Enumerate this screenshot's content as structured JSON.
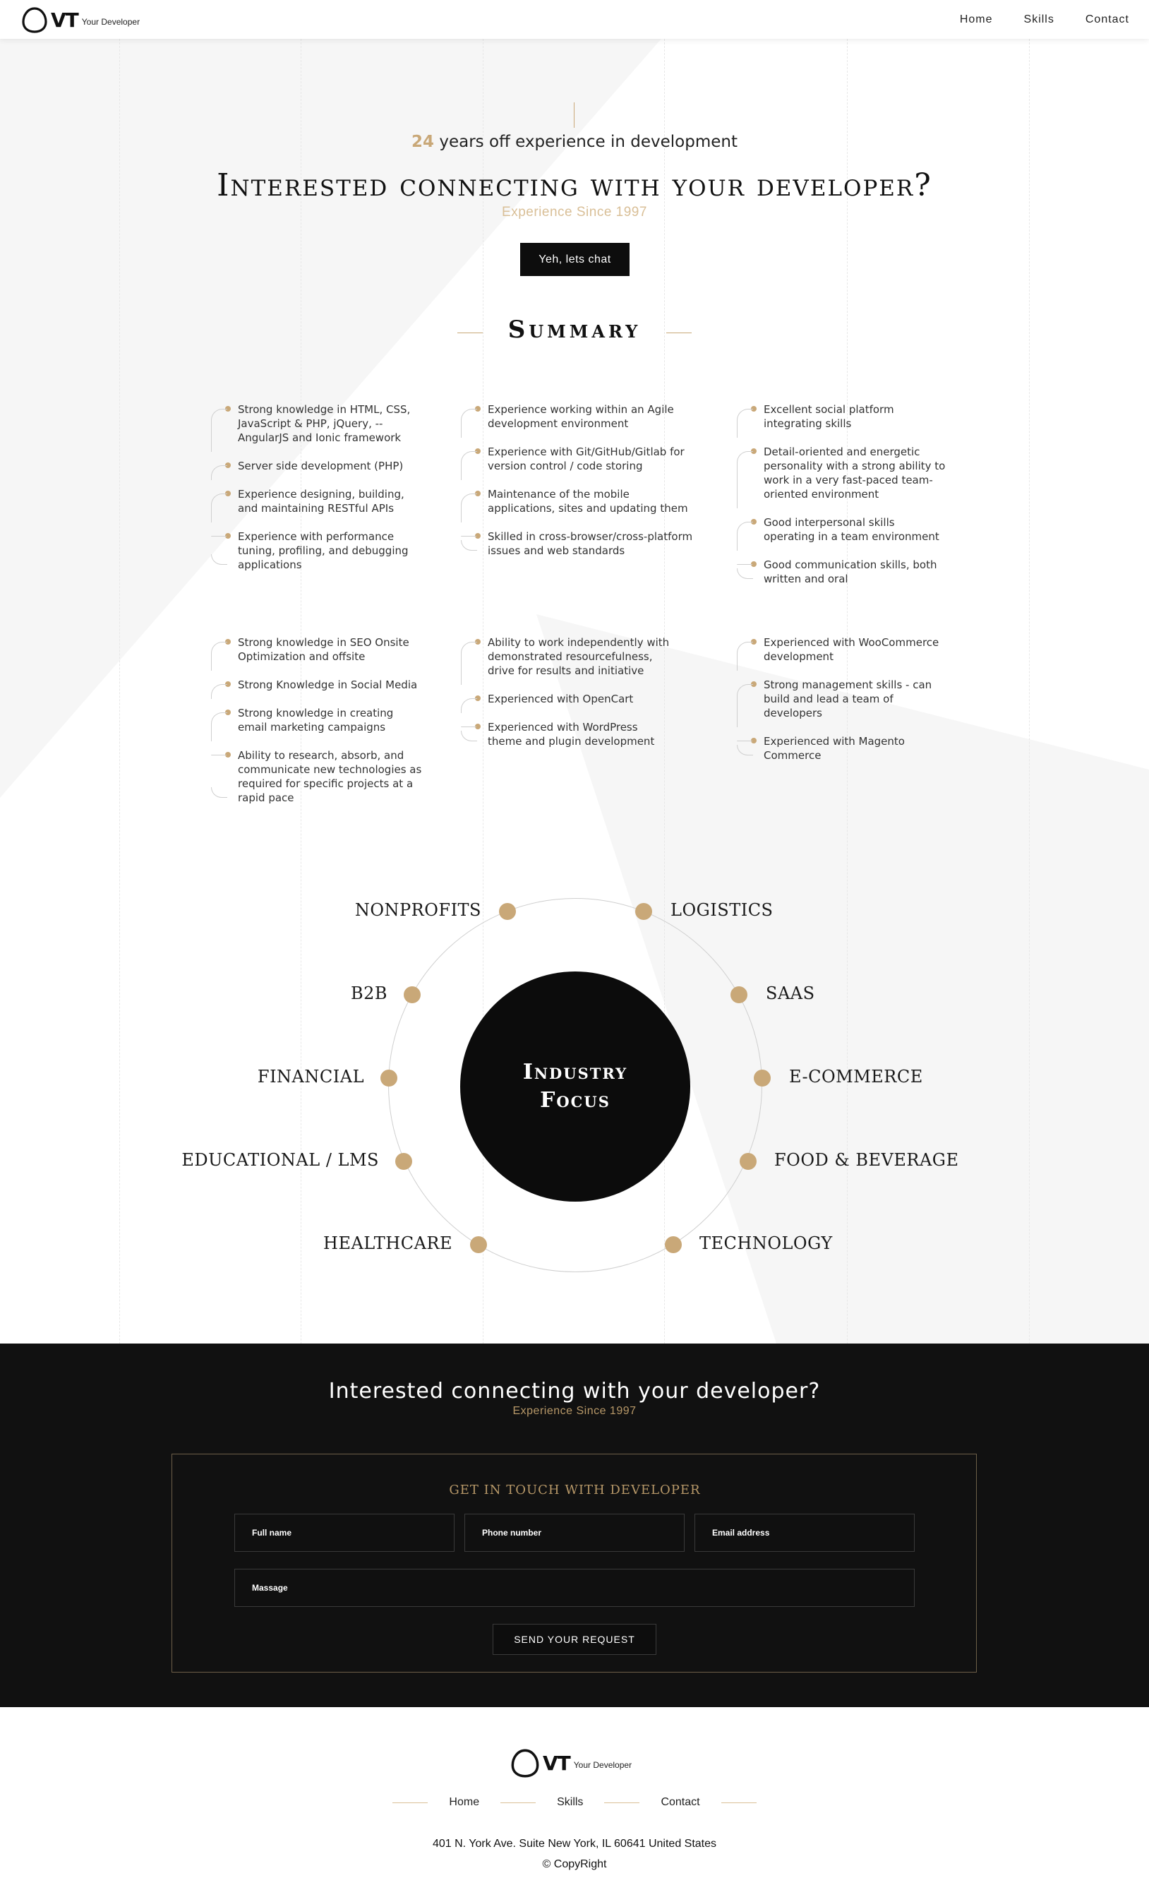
{
  "header": {
    "logo_text": "VT",
    "logo_sub": "Your Developer",
    "nav": [
      "Home",
      "Skills",
      "Contact"
    ]
  },
  "hero": {
    "years_num": "24",
    "years_text": " years off experience in development",
    "title": "Interested connecting with your developer?",
    "since": "Experience Since 1997",
    "cta": "Yeh, lets chat"
  },
  "summary": {
    "title": "Summary",
    "columns_row1": [
      [
        "Strong knowledge in HTML, CSS, JavaScript & PHP, jQuery, --AngularJS and Ionic framework",
        "Server side development (PHP)",
        "Experience designing, building, and maintaining RESTful APIs",
        "Experience with performance tuning, profiling, and debugging applications"
      ],
      [
        "Experience working within an Agile development environment",
        "Experience with Git/GitHub/Gitlab for version control / code storing",
        "Maintenance of the mobile applications, sites and updating them",
        "Skilled in cross-browser/cross-platform issues and web standards"
      ],
      [
        "Excellent social platform integrating skills",
        "Detail-oriented and energetic personality with a strong ability to work in a very fast-paced team-oriented environment",
        "Good interpersonal skills operating in a team environment",
        "Good communication skills, both written and oral"
      ]
    ],
    "columns_row2": [
      [
        "Strong knowledge in SEO Onsite Optimization and offsite",
        "Strong Knowledge in Social Media",
        "Strong knowledge in creating email marketing campaigns",
        "Ability to research, absorb, and communicate new technologies as required for specific projects at a rapid pace"
      ],
      [
        "Ability to work independently with demonstrated resourcefulness, drive for results and initiative",
        "Experienced with OpenCart",
        "Experienced with WordPress theme and plugin development"
      ],
      [
        "Experienced with WooCommerce development",
        "Strong management skills - can build and lead a team of developers",
        "Experienced with Magento Commerce"
      ]
    ]
  },
  "industry": {
    "center": "Industry Focus",
    "items": [
      "NONPROFITS",
      "LOGISTICS",
      "B2B",
      "SAAS",
      "FINANCIAL",
      "E-COMMERCE",
      "EDUCATIONAL / LMS",
      "FOOD & BEVERAGE",
      "HEALTHCARE",
      "TECHNOLOGY"
    ]
  },
  "contact": {
    "title": "Interested connecting with your developer?",
    "since": "Experience Since 1997",
    "form_heading": "GET IN TOUCH WITH DEVELOPER",
    "full_name": "Full name",
    "phone": "Phone number",
    "email": "Email address",
    "message": "Massage",
    "send": "SEND YOUR REQUEST"
  },
  "footer": {
    "logo_text": "VT",
    "logo_sub": "Your Developer",
    "nav": [
      "Home",
      "Skills",
      "Contact"
    ],
    "address": "401 N. York Ave. Suite New York, IL 60641 United States",
    "copyright": "© CopyRight"
  },
  "colors": {
    "accent": "#c9a878",
    "dark": "#111111"
  }
}
